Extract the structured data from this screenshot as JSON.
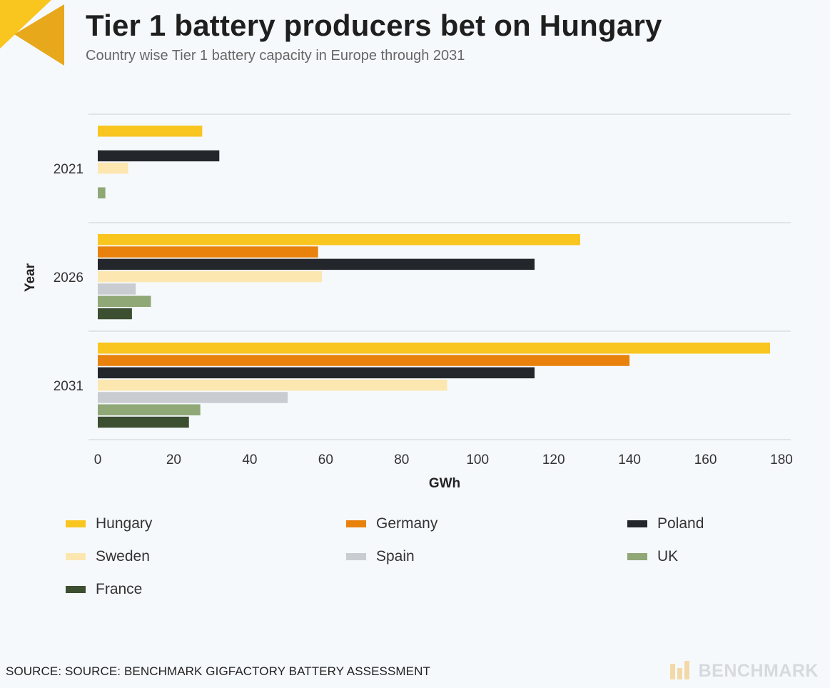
{
  "header": {
    "title": "Tier 1 battery producers bet on Hungary",
    "subtitle": "Country wise Tier 1 battery capacity in Europe through 2031"
  },
  "colors": {
    "Hungary": "#f9c51f",
    "Germany": "#e8820d",
    "Poland": "#23272b",
    "Sweden": "#fde7b0",
    "Spain": "#c9cdd1",
    "UK": "#8fa876",
    "France": "#3c4f31",
    "logo_primary": "#f9c51f",
    "logo_secondary": "#e8a81c"
  },
  "chart_data": {
    "type": "bar",
    "orientation": "horizontal",
    "title": "Tier 1 battery producers bet on Hungary",
    "subtitle": "Country wise Tier 1 battery capacity in Europe through 2031",
    "xlabel": "GWh",
    "ylabel": "Year",
    "xlim": [
      0,
      180
    ],
    "xticks": [
      "0",
      "20",
      "40",
      "60",
      "80",
      "100",
      "120",
      "140",
      "160",
      "180"
    ],
    "categories": [
      "2021",
      "2026",
      "2031"
    ],
    "series": [
      {
        "name": "Hungary",
        "values": [
          27.5,
          127,
          177
        ]
      },
      {
        "name": "Germany",
        "values": [
          0,
          58,
          140
        ]
      },
      {
        "name": "Poland",
        "values": [
          32,
          115,
          115
        ]
      },
      {
        "name": "Sweden",
        "values": [
          8,
          59,
          92
        ]
      },
      {
        "name": "Spain",
        "values": [
          0,
          10,
          50
        ]
      },
      {
        "name": "UK",
        "values": [
          2,
          14,
          27
        ]
      },
      {
        "name": "France",
        "values": [
          0,
          9,
          24
        ]
      }
    ],
    "legend_position": "bottom"
  },
  "footer": {
    "source": "SOURCE: SOURCE: BENCHMARK GIGFACTORY BATTERY ASSESSMENT",
    "brand": "BENCHMARK"
  }
}
